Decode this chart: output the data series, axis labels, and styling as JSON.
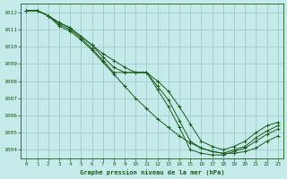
{
  "title": "Graphe pression niveau de la mer (hPa)",
  "bg_color": "#c5eaea",
  "grid_color": "#a0cccc",
  "line_color": "#1a5c1a",
  "xlim": [
    -0.5,
    23.5
  ],
  "ylim": [
    1003.5,
    1012.5
  ],
  "yticks": [
    1004,
    1005,
    1006,
    1007,
    1008,
    1009,
    1010,
    1011,
    1012
  ],
  "xticks": [
    0,
    1,
    2,
    3,
    4,
    5,
    6,
    7,
    8,
    9,
    10,
    11,
    12,
    13,
    14,
    15,
    16,
    17,
    18,
    19,
    20,
    21,
    22,
    23
  ],
  "series": [
    [
      1012.1,
      1012.1,
      1011.8,
      1011.2,
      1010.9,
      1010.4,
      1009.8,
      1009.1,
      1008.4,
      1007.7,
      1007.0,
      1006.4,
      1005.8,
      1005.3,
      1004.8,
      1004.4,
      1004.1,
      1003.9,
      1003.8,
      1003.8,
      1003.9,
      1004.1,
      1004.5,
      1004.8
    ],
    [
      1012.1,
      1012.1,
      1011.8,
      1011.3,
      1011.0,
      1010.5,
      1009.9,
      1009.2,
      1008.5,
      1008.5,
      1008.5,
      1008.5,
      1007.5,
      1006.5,
      1005.3,
      1004.0,
      1003.8,
      1003.7,
      1003.7,
      1003.9,
      1004.1,
      1004.5,
      1004.9,
      1005.2
    ],
    [
      1012.1,
      1012.1,
      1011.8,
      1011.4,
      1011.1,
      1010.6,
      1010.1,
      1009.4,
      1008.8,
      1008.5,
      1008.5,
      1008.5,
      1007.7,
      1006.9,
      1005.7,
      1004.5,
      1004.1,
      1003.9,
      1003.8,
      1004.0,
      1004.2,
      1004.7,
      1005.1,
      1005.4
    ],
    [
      1012.1,
      1012.1,
      1011.8,
      1011.4,
      1011.1,
      1010.6,
      1010.1,
      1009.6,
      1009.2,
      1008.8,
      1008.5,
      1008.5,
      1008.0,
      1007.4,
      1006.5,
      1005.5,
      1004.5,
      1004.2,
      1004.0,
      1004.2,
      1004.5,
      1005.0,
      1005.4,
      1005.6
    ]
  ]
}
